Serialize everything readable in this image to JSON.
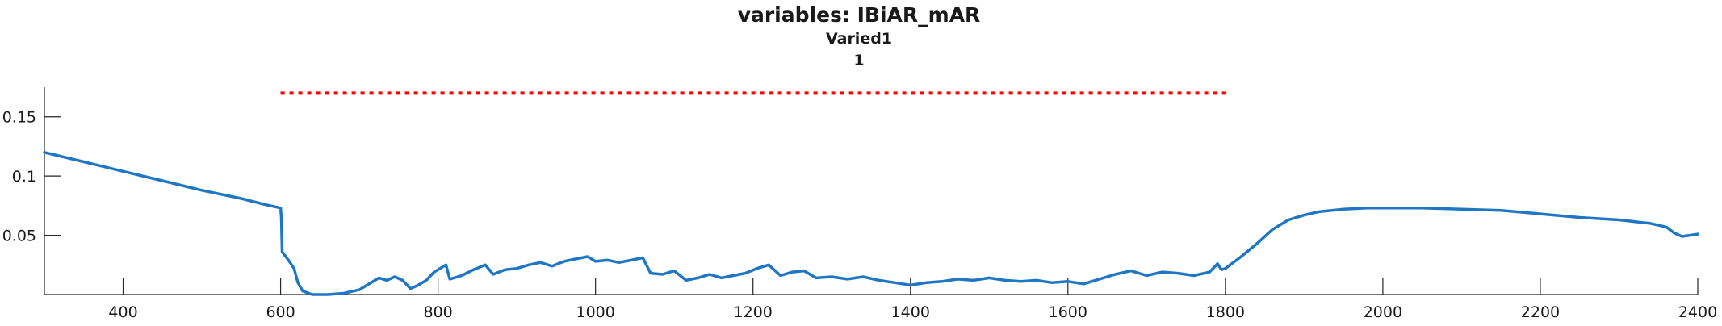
{
  "chart_data": {
    "type": "line",
    "title": "variables: IBiAR_mAR",
    "subtitle_lines": [
      "Varied1",
      "1"
    ],
    "xlabel": "",
    "ylabel": "",
    "xlim": [
      300,
      2400
    ],
    "ylim": [
      0,
      0.175
    ],
    "x_ticks": [
      400,
      600,
      800,
      1000,
      1200,
      1400,
      1600,
      1800,
      2000,
      2200,
      2400
    ],
    "x_tick_labels": [
      "400",
      "600",
      "800",
      "1000",
      "1200",
      "1400",
      "1600",
      "1800",
      "2000",
      "2200",
      "2400"
    ],
    "y_ticks": [
      0.05,
      0.1,
      0.15
    ],
    "y_tick_labels": [
      "0.05",
      "0.1",
      "0.15"
    ],
    "grid": false,
    "legend": "none",
    "colors": {
      "series": "#1f77c4",
      "reference": "#ff0000",
      "axis": "#262626"
    },
    "reference_line": {
      "x_start": 600,
      "x_end": 1800,
      "y": 0.17,
      "style": "dotted"
    },
    "series": [
      {
        "points": [
          [
            300,
            0.12
          ],
          [
            350,
            0.112
          ],
          [
            400,
            0.104
          ],
          [
            450,
            0.096
          ],
          [
            500,
            0.088
          ],
          [
            550,
            0.081
          ],
          [
            580,
            0.076
          ],
          [
            600,
            0.073
          ],
          [
            601,
            0.065
          ],
          [
            602,
            0.036
          ],
          [
            610,
            0.029
          ],
          [
            617,
            0.022
          ],
          [
            622,
            0.01
          ],
          [
            628,
            0.003
          ],
          [
            640,
            0.0
          ],
          [
            660,
            0.0
          ],
          [
            680,
            0.001
          ],
          [
            700,
            0.004
          ],
          [
            715,
            0.01
          ],
          [
            725,
            0.014
          ],
          [
            735,
            0.012
          ],
          [
            745,
            0.015
          ],
          [
            755,
            0.012
          ],
          [
            765,
            0.005
          ],
          [
            775,
            0.008
          ],
          [
            785,
            0.012
          ],
          [
            795,
            0.019
          ],
          [
            810,
            0.025
          ],
          [
            815,
            0.013
          ],
          [
            830,
            0.016
          ],
          [
            845,
            0.021
          ],
          [
            860,
            0.025
          ],
          [
            870,
            0.017
          ],
          [
            885,
            0.021
          ],
          [
            900,
            0.022
          ],
          [
            915,
            0.025
          ],
          [
            930,
            0.027
          ],
          [
            945,
            0.024
          ],
          [
            960,
            0.028
          ],
          [
            975,
            0.03
          ],
          [
            990,
            0.032
          ],
          [
            1000,
            0.028
          ],
          [
            1015,
            0.029
          ],
          [
            1030,
            0.027
          ],
          [
            1045,
            0.029
          ],
          [
            1060,
            0.031
          ],
          [
            1070,
            0.018
          ],
          [
            1085,
            0.017
          ],
          [
            1100,
            0.02
          ],
          [
            1115,
            0.012
          ],
          [
            1130,
            0.014
          ],
          [
            1145,
            0.017
          ],
          [
            1160,
            0.014
          ],
          [
            1175,
            0.016
          ],
          [
            1190,
            0.018
          ],
          [
            1205,
            0.022
          ],
          [
            1220,
            0.025
          ],
          [
            1235,
            0.016
          ],
          [
            1250,
            0.019
          ],
          [
            1265,
            0.02
          ],
          [
            1280,
            0.014
          ],
          [
            1300,
            0.015
          ],
          [
            1320,
            0.013
          ],
          [
            1340,
            0.015
          ],
          [
            1360,
            0.012
          ],
          [
            1380,
            0.01
          ],
          [
            1400,
            0.008
          ],
          [
            1420,
            0.01
          ],
          [
            1440,
            0.011
          ],
          [
            1460,
            0.013
          ],
          [
            1480,
            0.012
          ],
          [
            1500,
            0.014
          ],
          [
            1520,
            0.012
          ],
          [
            1540,
            0.011
          ],
          [
            1560,
            0.012
          ],
          [
            1580,
            0.01
          ],
          [
            1600,
            0.011
          ],
          [
            1620,
            0.009
          ],
          [
            1640,
            0.013
          ],
          [
            1660,
            0.017
          ],
          [
            1680,
            0.02
          ],
          [
            1700,
            0.016
          ],
          [
            1720,
            0.019
          ],
          [
            1740,
            0.018
          ],
          [
            1760,
            0.016
          ],
          [
            1780,
            0.019
          ],
          [
            1790,
            0.026
          ],
          [
            1795,
            0.021
          ],
          [
            1800,
            0.022
          ],
          [
            1820,
            0.032
          ],
          [
            1840,
            0.043
          ],
          [
            1860,
            0.055
          ],
          [
            1880,
            0.063
          ],
          [
            1900,
            0.067
          ],
          [
            1920,
            0.07
          ],
          [
            1950,
            0.072
          ],
          [
            1980,
            0.073
          ],
          [
            2000,
            0.073
          ],
          [
            2050,
            0.073
          ],
          [
            2100,
            0.072
          ],
          [
            2150,
            0.071
          ],
          [
            2200,
            0.068
          ],
          [
            2250,
            0.065
          ],
          [
            2300,
            0.063
          ],
          [
            2340,
            0.06
          ],
          [
            2360,
            0.057
          ],
          [
            2370,
            0.052
          ],
          [
            2380,
            0.049
          ],
          [
            2390,
            0.05
          ],
          [
            2400,
            0.051
          ]
        ]
      }
    ]
  }
}
